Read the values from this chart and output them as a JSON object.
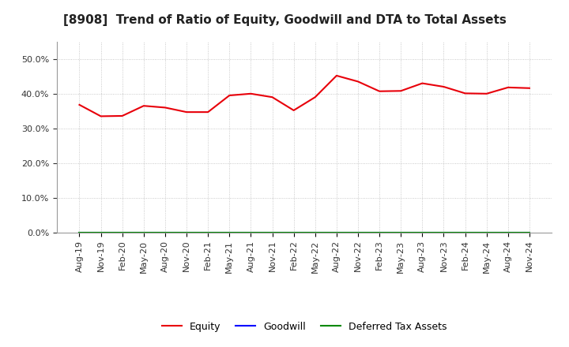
{
  "title": "[8908]  Trend of Ratio of Equity, Goodwill and DTA to Total Assets",
  "x_labels": [
    "Aug-19",
    "Nov-19",
    "Feb-20",
    "May-20",
    "Aug-20",
    "Nov-20",
    "Feb-21",
    "May-21",
    "Aug-21",
    "Nov-21",
    "Feb-22",
    "May-22",
    "Aug-22",
    "Nov-22",
    "Feb-23",
    "May-23",
    "Aug-23",
    "Nov-23",
    "Feb-24",
    "May-24",
    "Aug-24",
    "Nov-24"
  ],
  "equity": [
    0.368,
    0.335,
    0.336,
    0.365,
    0.36,
    0.347,
    0.347,
    0.395,
    0.4,
    0.39,
    0.352,
    0.39,
    0.452,
    0.435,
    0.407,
    0.408,
    0.43,
    0.42,
    0.401,
    0.4,
    0.418,
    0.416
  ],
  "goodwill": [
    0.0,
    0.0,
    0.0,
    0.0,
    0.0,
    0.0,
    0.0,
    0.0,
    0.0,
    0.0,
    0.0,
    0.0,
    0.0,
    0.0,
    0.0,
    0.0,
    0.0,
    0.0,
    0.0,
    0.0,
    0.0,
    0.0
  ],
  "dta": [
    0.0,
    0.0,
    0.0,
    0.0,
    0.0,
    0.0,
    0.0,
    0.0,
    0.0,
    0.0,
    0.0,
    0.0,
    0.0,
    0.0,
    0.0,
    0.0,
    0.0,
    0.0,
    0.0,
    0.0,
    0.0,
    0.0
  ],
  "equity_color": "#e8000a",
  "goodwill_color": "#0000ff",
  "dta_color": "#008800",
  "ylim": [
    0.0,
    0.55
  ],
  "yticks": [
    0.0,
    0.1,
    0.2,
    0.3,
    0.4,
    0.5
  ],
  "background_color": "#ffffff",
  "plot_bg_color": "#ffffff",
  "grid_color": "#bbbbbb",
  "title_fontsize": 11,
  "tick_fontsize": 8,
  "legend_fontsize": 9,
  "legend_labels": [
    "Equity",
    "Goodwill",
    "Deferred Tax Assets"
  ]
}
